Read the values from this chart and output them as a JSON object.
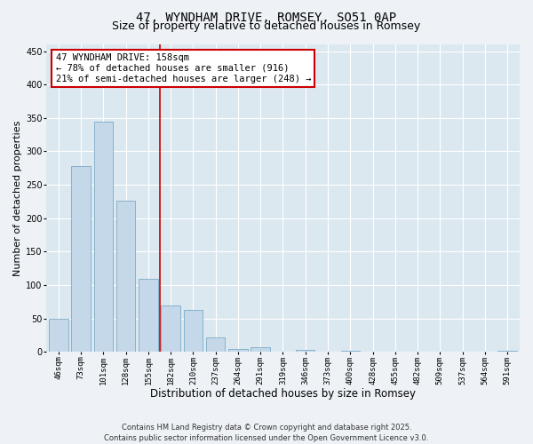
{
  "title_line1": "47, WYNDHAM DRIVE, ROMSEY, SO51 0AP",
  "title_line2": "Size of property relative to detached houses in Romsey",
  "xlabel": "Distribution of detached houses by size in Romsey",
  "ylabel": "Number of detached properties",
  "categories": [
    "46sqm",
    "73sqm",
    "101sqm",
    "128sqm",
    "155sqm",
    "182sqm",
    "210sqm",
    "237sqm",
    "264sqm",
    "291sqm",
    "319sqm",
    "346sqm",
    "373sqm",
    "400sqm",
    "428sqm",
    "455sqm",
    "482sqm",
    "509sqm",
    "537sqm",
    "564sqm",
    "591sqm"
  ],
  "values": [
    50,
    278,
    345,
    226,
    109,
    70,
    63,
    22,
    5,
    7,
    0,
    3,
    0,
    2,
    0,
    0,
    0,
    0,
    0,
    0,
    2
  ],
  "bar_color": "#c5d8ea",
  "bar_edge_color": "#6a9fc0",
  "vline_x": 4.5,
  "vline_color": "#cc0000",
  "annotation_text": "47 WYNDHAM DRIVE: 158sqm\n← 78% of detached houses are smaller (916)\n21% of semi-detached houses are larger (248) →",
  "annotation_box_facecolor": "#ffffff",
  "annotation_box_edgecolor": "#cc0000",
  "ylim": [
    0,
    460
  ],
  "yticks": [
    0,
    50,
    100,
    150,
    200,
    250,
    300,
    350,
    400,
    450
  ],
  "background_color": "#eef2f7",
  "plot_bg_color": "#dce8f0",
  "grid_color": "#ffffff",
  "footer_line1": "Contains HM Land Registry data © Crown copyright and database right 2025.",
  "footer_line2": "Contains public sector information licensed under the Open Government Licence v3.0.",
  "title_fontsize": 10,
  "subtitle_fontsize": 9,
  "tick_fontsize": 6.5,
  "ylabel_fontsize": 8,
  "xlabel_fontsize": 8.5,
  "annotation_fontsize": 7.5,
  "footer_fontsize": 6
}
